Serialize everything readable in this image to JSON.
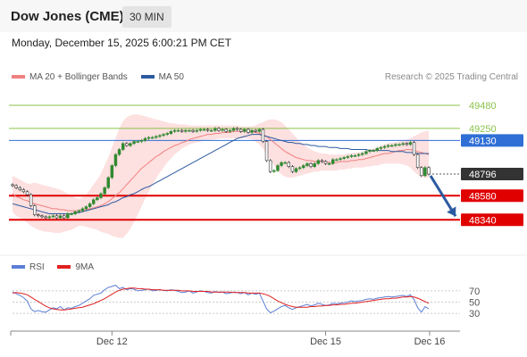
{
  "header": {
    "title": "Dow Jones (CME)",
    "timeframe": "30 MIN",
    "timestamp": "Monday, December 15, 2025 6:00:21 PM CET",
    "credit": "Research © 2025 Trading Central"
  },
  "legend": [
    {
      "label": "MA 20 + Bollinger Bands",
      "color": "#f08080"
    },
    {
      "label": "MA 50",
      "color": "#2c5aa0"
    }
  ],
  "rsi_legend": [
    {
      "label": "RSI",
      "color": "#5b7fd6"
    },
    {
      "label": "9MA",
      "color": "#e02020"
    }
  ],
  "chart_data": [
    {
      "type": "candlestick",
      "x_ticks": [
        "Dec 12",
        "Dec 15",
        "Dec 16"
      ],
      "ylim": [
        48040,
        49640
      ],
      "price_levels": [
        {
          "value": 49480,
          "label": "49480",
          "color": "#8bc34a",
          "kind": "resistance"
        },
        {
          "value": 49250,
          "label": "49250",
          "color": "#8bc34a",
          "kind": "resistance"
        },
        {
          "value": 49130,
          "label": "49130",
          "color": "#2f6fd6",
          "kind": "pivot",
          "tag": true
        },
        {
          "value": 48796,
          "label": "48796",
          "color": "#333333",
          "kind": "last",
          "tag": true
        },
        {
          "value": 48580,
          "label": "48580",
          "color": "#e00000",
          "kind": "support",
          "tag": true
        },
        {
          "value": 48340,
          "label": "48340",
          "color": "#e00000",
          "kind": "support",
          "tag": true
        }
      ],
      "close": [
        48680,
        48660,
        48640,
        48620,
        48590,
        48480,
        48390,
        48380,
        48370,
        48360,
        48370,
        48380,
        48360,
        48380,
        48360,
        48400,
        48400,
        48420,
        48430,
        48450,
        48470,
        48500,
        48540,
        48560,
        48600,
        48660,
        48760,
        48880,
        48990,
        49040,
        49100,
        49080,
        49100,
        49120,
        49120,
        49130,
        49150,
        49160,
        49160,
        49170,
        49180,
        49190,
        49200,
        49220,
        49230,
        49230,
        49220,
        49230,
        49230,
        49220,
        49230,
        49240,
        49240,
        49230,
        49230,
        49250,
        49230,
        49240,
        49220,
        49230,
        49250,
        49240,
        49220,
        49240,
        49210,
        49230,
        49220,
        49240,
        49120,
        48930,
        48820,
        48830,
        48880,
        48910,
        48910,
        48870,
        48820,
        48850,
        48860,
        48880,
        48900,
        48870,
        48900,
        48930,
        48920,
        48900,
        48900,
        48940,
        48940,
        48950,
        48960,
        48970,
        48980,
        48980,
        48990,
        49000,
        49020,
        49030,
        49030,
        49050,
        49060,
        49070,
        49080,
        49080,
        49090,
        49090,
        49100,
        49090,
        49110,
        48990,
        48860,
        48780,
        48860,
        48796
      ],
      "ma20": [
        48600,
        48570,
        48560,
        48540,
        48530,
        48510,
        48500,
        48490,
        48480,
        48470,
        48460,
        48450,
        48450,
        48440,
        48440,
        48430,
        48430,
        48430,
        48430,
        48440,
        48440,
        48450,
        48460,
        48470,
        48480,
        48500,
        48520,
        48550,
        48580,
        48610,
        48650,
        48690,
        48730,
        48770,
        48810,
        48850,
        48880,
        48910,
        48940,
        48970,
        48990,
        49020,
        49040,
        49060,
        49080,
        49090,
        49110,
        49120,
        49140,
        49150,
        49160,
        49170,
        49180,
        49190,
        49190,
        49200,
        49200,
        49210,
        49210,
        49210,
        49220,
        49220,
        49220,
        49220,
        49220,
        49220,
        49210,
        49200,
        49190,
        49170,
        49140,
        49110,
        49080,
        49050,
        49020,
        49000,
        48980,
        48960,
        48950,
        48940,
        48930,
        48930,
        48920,
        48920,
        48920,
        48920,
        48910,
        48910,
        48910,
        48920,
        48920,
        48920,
        48930,
        48930,
        48940,
        48940,
        48950,
        48960,
        48970,
        48980,
        48990,
        49000,
        49000,
        49010,
        49020,
        49030,
        49030,
        49040,
        49040,
        49030,
        49020,
        49010,
        49000,
        48990
      ],
      "bb_upper": [
        48780,
        48760,
        48740,
        48720,
        48700,
        48700,
        48710,
        48700,
        48690,
        48680,
        48670,
        48660,
        48650,
        48640,
        48620,
        48600,
        48580,
        48560,
        48550,
        48560,
        48590,
        48640,
        48690,
        48740,
        48800,
        48880,
        48960,
        49060,
        49160,
        49250,
        49320,
        49360,
        49380,
        49390,
        49390,
        49380,
        49370,
        49360,
        49350,
        49340,
        49330,
        49320,
        49310,
        49300,
        49300,
        49290,
        49290,
        49290,
        49280,
        49280,
        49280,
        49280,
        49280,
        49280,
        49280,
        49280,
        49280,
        49280,
        49280,
        49280,
        49280,
        49280,
        49270,
        49270,
        49270,
        49270,
        49280,
        49300,
        49310,
        49330,
        49340,
        49340,
        49330,
        49310,
        49280,
        49240,
        49200,
        49160,
        49120,
        49090,
        49060,
        49040,
        49020,
        49010,
        49000,
        49000,
        48990,
        48990,
        48990,
        48990,
        48990,
        49000,
        49000,
        49010,
        49010,
        49020,
        49030,
        49040,
        49050,
        49060,
        49080,
        49090,
        49100,
        49110,
        49110,
        49120,
        49130,
        49140,
        49150,
        49170,
        49190,
        49210,
        49220,
        49230
      ],
      "bb_lower": [
        48420,
        48380,
        48360,
        48340,
        48310,
        48280,
        48260,
        48240,
        48230,
        48220,
        48220,
        48210,
        48210,
        48210,
        48220,
        48230,
        48240,
        48260,
        48280,
        48280,
        48270,
        48260,
        48250,
        48240,
        48220,
        48210,
        48200,
        48180,
        48170,
        48160,
        48160,
        48200,
        48250,
        48320,
        48390,
        48470,
        48550,
        48620,
        48690,
        48750,
        48810,
        48860,
        48910,
        48950,
        48990,
        49020,
        49050,
        49070,
        49090,
        49100,
        49110,
        49120,
        49130,
        49130,
        49140,
        49140,
        49150,
        49150,
        49150,
        49150,
        49150,
        49150,
        49150,
        49150,
        49150,
        49140,
        49120,
        49090,
        49050,
        48990,
        48930,
        48880,
        48830,
        48790,
        48770,
        48760,
        48760,
        48770,
        48780,
        48790,
        48800,
        48810,
        48820,
        48820,
        48830,
        48830,
        48830,
        48830,
        48830,
        48840,
        48840,
        48850,
        48850,
        48860,
        48860,
        48860,
        48870,
        48870,
        48880,
        48880,
        48890,
        48900,
        48900,
        48900,
        48900,
        48900,
        48890,
        48880,
        48860,
        48820,
        48790,
        48770,
        48760,
        48760
      ],
      "ma50": [
        48500,
        48490,
        48480,
        48470,
        48460,
        48450,
        48440,
        48430,
        48420,
        48410,
        48400,
        48400,
        48400,
        48400,
        48400,
        48400,
        48400,
        48410,
        48410,
        48420,
        48430,
        48440,
        48450,
        48460,
        48470,
        48480,
        48490,
        48510,
        48520,
        48540,
        48560,
        48570,
        48590,
        48600,
        48620,
        48640,
        48660,
        48670,
        48690,
        48710,
        48730,
        48750,
        48770,
        48790,
        48810,
        48830,
        48850,
        48870,
        48890,
        48910,
        48930,
        48950,
        48970,
        48990,
        49010,
        49030,
        49050,
        49070,
        49090,
        49110,
        49130,
        49150,
        49160,
        49170,
        49180,
        49190,
        49190,
        49190,
        49180,
        49170,
        49160,
        49150,
        49140,
        49130,
        49120,
        49110,
        49110,
        49100,
        49100,
        49090,
        49090,
        49080,
        49080,
        49070,
        49070,
        49070,
        49060,
        49060,
        49060,
        49050,
        49050,
        49050,
        49040,
        49040,
        49040,
        49040,
        49040,
        49030,
        49030,
        49030,
        49030,
        49030,
        49030,
        49020,
        49020,
        49020,
        49020,
        49010,
        49010,
        49010,
        49000,
        49000,
        49000,
        49000
      ]
    },
    {
      "type": "line",
      "series": [
        {
          "name": "RSI",
          "color": "#5b7fd6",
          "values": [
            68,
            65,
            62,
            58,
            52,
            38,
            33,
            35,
            33,
            32,
            36,
            40,
            38,
            42,
            36,
            40,
            39,
            42,
            44,
            48,
            52,
            56,
            62,
            64,
            66,
            72,
            76,
            78,
            80,
            74,
            76,
            72,
            74,
            73,
            70,
            71,
            72,
            73,
            70,
            71,
            72,
            71,
            70,
            72,
            71,
            69,
            67,
            68,
            70,
            66,
            68,
            70,
            69,
            67,
            66,
            69,
            67,
            68,
            65,
            66,
            68,
            67,
            65,
            67,
            63,
            66,
            64,
            66,
            52,
            38,
            31,
            34,
            38,
            42,
            44,
            40,
            37,
            40,
            42,
            44,
            46,
            43,
            45,
            48,
            46,
            44,
            45,
            48,
            47,
            48,
            49,
            50,
            52,
            51,
            52,
            53,
            55,
            56,
            55,
            57,
            58,
            59,
            60,
            59,
            60,
            61,
            62,
            60,
            63,
            55,
            40,
            32,
            42,
            38
          ]
        },
        {
          "name": "9MA",
          "color": "#e02020",
          "values": [
            66,
            67,
            66,
            65,
            63,
            59,
            55,
            51,
            47,
            43,
            40,
            38,
            37,
            36,
            36,
            37,
            38,
            39,
            40,
            41,
            43,
            45,
            47,
            50,
            53,
            56,
            60,
            64,
            68,
            71,
            73,
            74,
            75,
            75,
            74,
            74,
            73,
            73,
            72,
            72,
            72,
            71,
            71,
            71,
            71,
            71,
            70,
            70,
            70,
            69,
            69,
            69,
            69,
            69,
            68,
            68,
            68,
            68,
            68,
            68,
            67,
            67,
            67,
            67,
            66,
            66,
            66,
            66,
            65,
            63,
            60,
            56,
            52,
            49,
            46,
            44,
            42,
            41,
            41,
            41,
            41,
            42,
            42,
            43,
            43,
            44,
            44,
            45,
            45,
            46,
            46,
            47,
            48,
            48,
            49,
            50,
            51,
            52,
            53,
            54,
            55,
            56,
            56,
            57,
            57,
            58,
            59,
            59,
            60,
            59,
            57,
            54,
            51,
            48
          ]
        }
      ],
      "levels": [
        70,
        50,
        30
      ],
      "ylim": [
        0,
        100
      ]
    }
  ]
}
